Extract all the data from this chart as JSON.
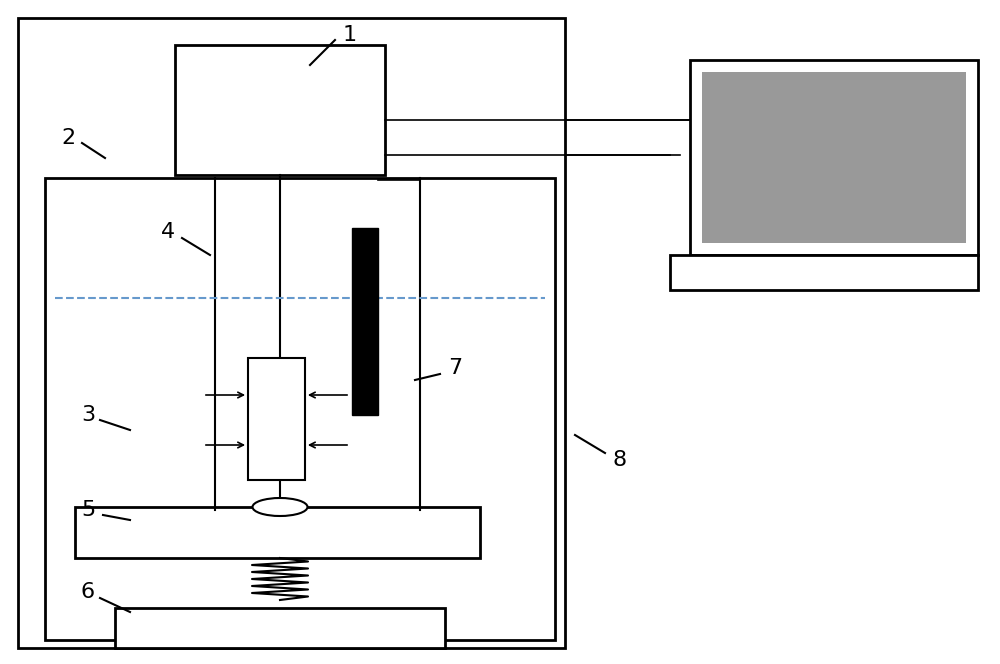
{
  "bg_color": "#ffffff",
  "line_color": "#000000",
  "blue_dash_color": "#6699cc",
  "gray_color": "#999999",
  "label_color": "#000000",
  "figsize": [
    10.0,
    6.64
  ],
  "dpi": 100
}
